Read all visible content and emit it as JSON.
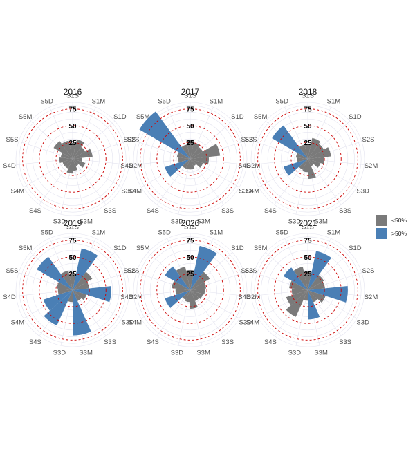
{
  "chart_data": {
    "type": "polar-bar",
    "categories": [
      "S1S",
      "S1M",
      "S1D",
      "S2S",
      "S2M",
      "S3D",
      "S3S",
      "S3M",
      "S3D",
      "S4S",
      "S4M",
      "S4D",
      "S5S",
      "S5M",
      "S5D"
    ],
    "rings": [
      25,
      50,
      75
    ],
    "ring_labels": [
      "25",
      "50",
      "75"
    ],
    "rmax": 85,
    "legend": {
      "placement": "right",
      "items": [
        {
          "label": "<50%",
          "color": "#7a7a7a"
        },
        {
          "label": ">50%",
          "color": "#4a7fb5"
        }
      ]
    },
    "colors": {
      "low": "#7a7a7a",
      "high": "#4a7fb5",
      "ring": "#cc0000",
      "grid": "#e3e3ef"
    },
    "panels": [
      {
        "title": "2016",
        "values": [
          24,
          30,
          22,
          30,
          14,
          20,
          12,
          18,
          22,
          16,
          16,
          20,
          18,
          33,
          28
        ],
        "groups": [
          0,
          0,
          0,
          0,
          0,
          0,
          0,
          0,
          0,
          0,
          0,
          0,
          0,
          0,
          0
        ]
      },
      {
        "title": "2017",
        "values": [
          28,
          25,
          22,
          45,
          28,
          20,
          12,
          16,
          16,
          16,
          40,
          18,
          20,
          88,
          22
        ],
        "groups": [
          0,
          0,
          0,
          0,
          0,
          0,
          0,
          0,
          0,
          0,
          1,
          0,
          0,
          1,
          0
        ]
      },
      {
        "title": "2018",
        "values": [
          22,
          32,
          28,
          35,
          25,
          20,
          12,
          30,
          20,
          18,
          38,
          16,
          18,
          62,
          22
        ],
        "groups": [
          0,
          0,
          0,
          0,
          0,
          0,
          0,
          0,
          0,
          0,
          1,
          0,
          0,
          1,
          0
        ]
      },
      {
        "title": "2019",
        "values": [
          25,
          64,
          34,
          25,
          58,
          22,
          18,
          68,
          18,
          58,
          46,
          22,
          24,
          62,
          30
        ],
        "groups": [
          0,
          1,
          0,
          0,
          1,
          0,
          0,
          1,
          0,
          1,
          1,
          0,
          0,
          1,
          0
        ]
      },
      {
        "title": "2020",
        "values": [
          30,
          68,
          34,
          24,
          22,
          20,
          18,
          28,
          18,
          16,
          40,
          22,
          28,
          44,
          36
        ],
        "groups": [
          0,
          1,
          0,
          0,
          0,
          0,
          0,
          0,
          0,
          0,
          1,
          0,
          0,
          1,
          0
        ]
      },
      {
        "title": "2021",
        "values": [
          28,
          60,
          28,
          26,
          60,
          28,
          20,
          44,
          16,
          44,
          34,
          24,
          28,
          42,
          36
        ],
        "groups": [
          0,
          1,
          0,
          0,
          1,
          0,
          0,
          1,
          0,
          0,
          0,
          0,
          0,
          1,
          0
        ]
      }
    ]
  }
}
